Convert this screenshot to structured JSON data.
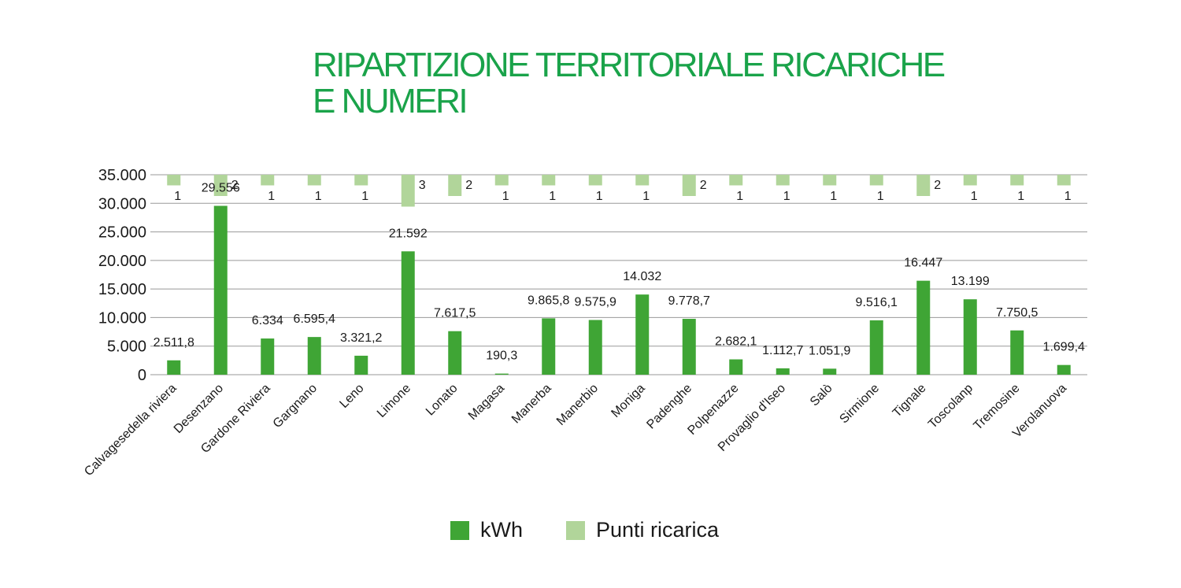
{
  "title_lines": [
    "RIPARTIZIONE  TERRITORIALE RICARICHE",
    "E NUMERI"
  ],
  "colors": {
    "kwh": "#3fa535",
    "punti": "#b1d59a",
    "title": "#1aa34a",
    "grid": "#999999"
  },
  "chart_data": {
    "type": "bar",
    "title": "RIPARTIZIONE  TERRITORIALE RICARICHE E NUMERI",
    "ylim": [
      0,
      35000
    ],
    "yticks": [
      0,
      5000,
      10000,
      15000,
      20000,
      25000,
      30000,
      35000
    ],
    "ytick_labels": [
      "0",
      "5.000",
      "10.000",
      "15.000",
      "20.000",
      "25.000",
      "30.000",
      "35.000"
    ],
    "grid": true,
    "legend_position": "bottom",
    "categories": [
      "Calvagesedella riviera",
      "Desenzano",
      "Gardone Riviera",
      "Gargnano",
      "Leno",
      "Limone",
      "Lonato",
      "Magasa",
      "Manerba",
      "Manerbio",
      "Moniga",
      "Padenghe",
      "Polpenazze",
      "Provaglio d'Iseo",
      "Salò",
      "Sirmione",
      "Tignale",
      "Toscolanp",
      "Tremosine",
      "Verolanuova"
    ],
    "series": [
      {
        "name": "kWh",
        "values": [
          2511.8,
          29556,
          6334,
          6595.4,
          3321.2,
          21592,
          7617.5,
          190.3,
          9865.8,
          9575.9,
          14032,
          9778.7,
          2682.1,
          1112.7,
          1051.9,
          9516.1,
          16447,
          13199,
          7750.5,
          1699.4
        ],
        "labels": [
          "2.511,8",
          "29.556",
          "6.334",
          "6.595,4",
          "3.321,2",
          "21.592",
          "7.617,5",
          "190,3",
          "9.865,8",
          "9.575,9",
          "14.032",
          "9.778,7",
          "2.682,1",
          "1.112,7",
          "1.051,9",
          "9.516,1",
          "16.447",
          "13.199",
          "7.750,5",
          "1.699,4"
        ]
      },
      {
        "name": "Punti ricarica",
        "values": [
          1,
          2,
          1,
          1,
          1,
          3,
          2,
          1,
          1,
          1,
          1,
          2,
          1,
          1,
          1,
          1,
          2,
          1,
          1,
          1
        ],
        "labels": [
          "1",
          "2",
          "1",
          "1",
          "1",
          "3",
          "2",
          "1",
          "1",
          "1",
          "1",
          "2",
          "1",
          "1",
          "1",
          "1",
          "2",
          "1",
          "1",
          "1"
        ]
      }
    ]
  }
}
